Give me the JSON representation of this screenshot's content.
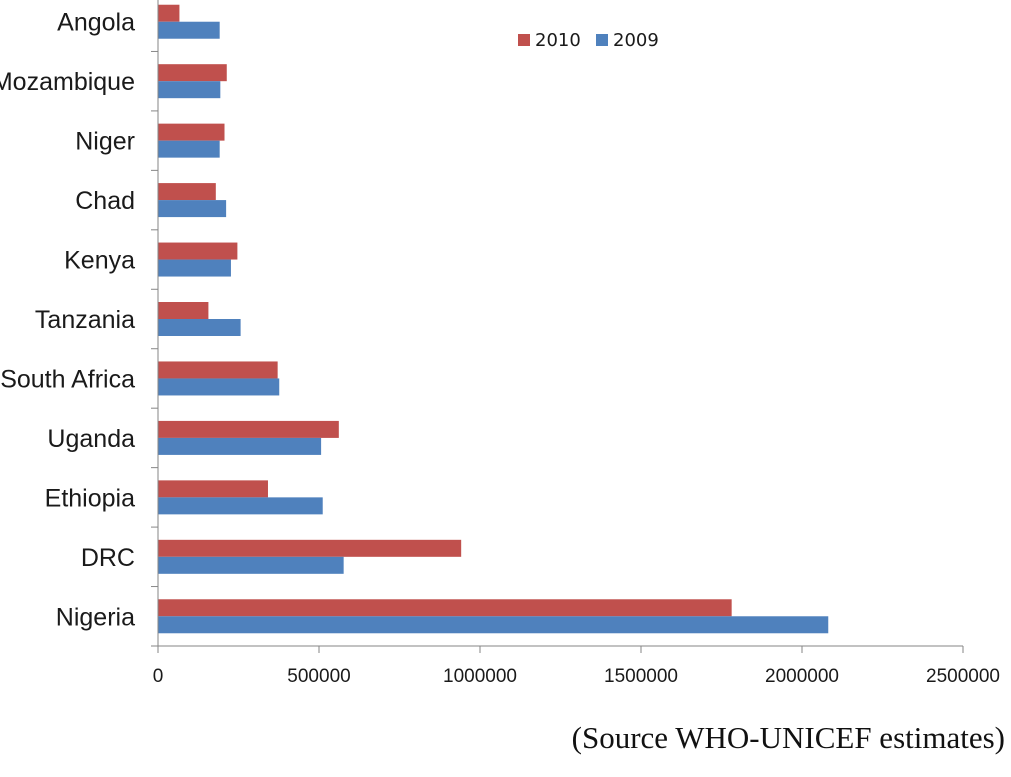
{
  "chart_data": {
    "type": "bar",
    "orientation": "horizontal",
    "categories": [
      "Angola",
      "Mozambique",
      "Niger",
      "Chad",
      "Kenya",
      "Tanzania",
      "South Africa",
      "Uganda",
      "Ethiopia",
      "DRC",
      "Nigeria"
    ],
    "series": [
      {
        "name": "2010",
        "color": "#C0504D",
        "values": [
          65000,
          212000,
          205000,
          178000,
          245000,
          155000,
          370000,
          560000,
          340000,
          940000,
          1780000
        ]
      },
      {
        "name": "2009",
        "color": "#4F81BD",
        "values": [
          190000,
          192000,
          190000,
          210000,
          225000,
          255000,
          375000,
          505000,
          510000,
          575000,
          2080000
        ]
      }
    ],
    "xlim": [
      0,
      2500000
    ],
    "xticks": [
      "0",
      "500000",
      "1000000",
      "1500000",
      "2000000",
      "2500000"
    ],
    "legend_position": "top-right",
    "grid": false
  },
  "source_note": "(Source WHO-UNICEF estimates)"
}
